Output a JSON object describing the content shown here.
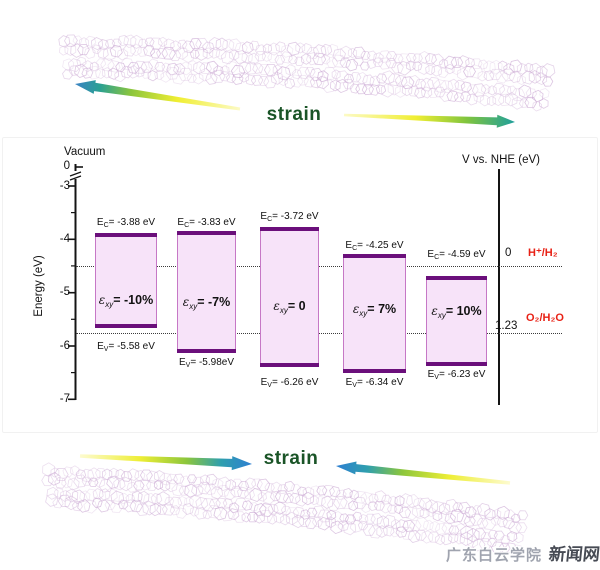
{
  "figure_labels": {
    "strain_top": "strain",
    "strain_bottom": "strain"
  },
  "chart_data": {
    "type": "bar",
    "left_axis": {
      "top_label": "Vacuum",
      "axis_label": "Energy (eV)",
      "ticks": [
        "0",
        "-3",
        "-4",
        "-5",
        "-6",
        "-7"
      ],
      "range": [
        0,
        -7
      ],
      "has_axis_break": true
    },
    "right_axis": {
      "axis_label": "V vs. NHE (eV)",
      "levels": [
        {
          "value": "0",
          "num": 0,
          "couple": "H⁺/H₂"
        },
        {
          "value": "1.23",
          "num": 1.23,
          "couple": "O₂/H₂O"
        }
      ]
    },
    "label_parts": {
      "ec_prefix": "E",
      "ec_sub": "C",
      "ev_prefix": "E",
      "ev_sub": "V",
      "eq": "= ",
      "epsilon": "ε",
      "epsilon_sub": "xy"
    },
    "bars": [
      {
        "strain": "-10%",
        "ec": -3.88,
        "ev": -5.58,
        "ec_text": "-3.88 eV",
        "ev_text": "-5.58 eV"
      },
      {
        "strain": "-7%",
        "ec": -3.83,
        "ev": -5.98,
        "ec_text": "-3.83 eV",
        "ev_text": "-5.98eV"
      },
      {
        "strain": "0",
        "ec": -3.72,
        "ev": -6.26,
        "ec_text": "-3.72 eV",
        "ev_text": "-6.26 eV"
      },
      {
        "strain": "7%",
        "ec": -4.25,
        "ev": -6.34,
        "ec_text": "-4.25 eV",
        "ev_text": "-6.34 eV"
      },
      {
        "strain": "10%",
        "ec": -4.59,
        "ev": -6.23,
        "ec_text": "-4.59 eV",
        "ev_text": "-6.23 eV"
      }
    ],
    "colors": {
      "bar_fill": "#f7e3f9",
      "band_edge": "#6b0f7b",
      "bar_side": "#c678c6",
      "redox_label": "#e82115",
      "strain_text": "#1a5427",
      "molecule": "#c9a6d2"
    }
  },
  "watermark": {
    "institution": "广东白云学院",
    "site": "新闻网"
  }
}
